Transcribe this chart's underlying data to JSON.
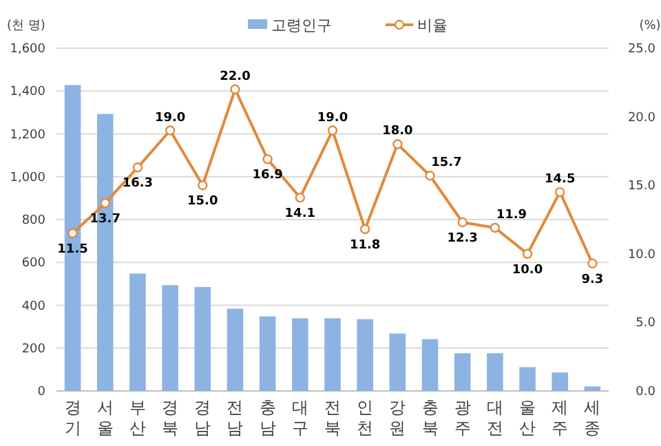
{
  "chart_data": {
    "type": "bar",
    "ylabel": "(천 명)",
    "y2label": "(%)",
    "legend": "top",
    "grid": "y",
    "categories": [
      "경기",
      "서울",
      "부산",
      "경북",
      "경남",
      "전남",
      "충남",
      "대구",
      "전북",
      "인천",
      "강원",
      "충북",
      "광주",
      "대전",
      "울산",
      "제주",
      "세종"
    ],
    "ylim": [
      0,
      1600
    ],
    "yticks": [
      {
        "value": 0,
        "label": "0"
      },
      {
        "value": 200,
        "label": "200"
      },
      {
        "value": 400,
        "label": "400"
      },
      {
        "value": 600,
        "label": "600"
      },
      {
        "value": 800,
        "label": "800"
      },
      {
        "value": 1000,
        "label": "1,000"
      },
      {
        "value": 1200,
        "label": "1,200"
      },
      {
        "value": 1400,
        "label": "1,400"
      },
      {
        "value": 1600,
        "label": "1,600"
      }
    ],
    "y2lim": [
      0,
      25
    ],
    "y2ticks": [
      {
        "value": 0,
        "label": "0.0"
      },
      {
        "value": 5,
        "label": "5.0"
      },
      {
        "value": 10,
        "label": "10.0"
      },
      {
        "value": 15,
        "label": "15.0"
      },
      {
        "value": 20,
        "label": "20.0"
      },
      {
        "value": 25,
        "label": "25.0"
      }
    ],
    "series": [
      {
        "name": "고령인구",
        "color": "#8db3e2",
        "values": [
          1428,
          1293,
          548,
          494,
          485,
          384,
          348,
          339,
          339,
          335,
          268,
          242,
          176,
          176,
          111,
          86,
          21
        ]
      },
      {
        "name": "비율",
        "type": "line",
        "axis": "y2",
        "color": "#e08a3c",
        "marker": "circle",
        "values": [
          11.5,
          13.7,
          16.3,
          19.0,
          15.0,
          22.0,
          16.9,
          14.1,
          19.0,
          11.8,
          18.0,
          15.7,
          12.3,
          11.9,
          10.0,
          14.5,
          9.3
        ],
        "value_labels": [
          "11.5",
          "13.7",
          "16.3",
          "19.0",
          "15.0",
          "22.0",
          "16.9",
          "14.1",
          "19.0",
          "11.8",
          "18.0",
          "15.7",
          "12.3",
          "11.9",
          "10.0",
          "14.5",
          "9.3"
        ]
      }
    ]
  }
}
